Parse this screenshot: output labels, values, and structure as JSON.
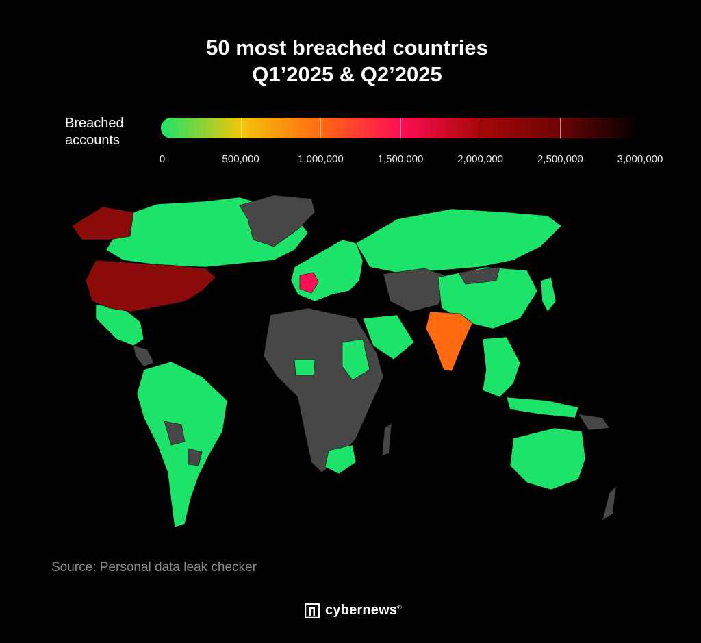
{
  "title": {
    "line1": "50 most breached countries",
    "line2": "Q1’2025 & Q2’2025"
  },
  "legend": {
    "label_line1": "Breached",
    "label_line2": "accounts",
    "ticks": [
      "0",
      "500,000",
      "1,000,000",
      "1,500,000",
      "2,000,000",
      "2,500,000",
      "3,000,000"
    ],
    "tick_values": [
      0,
      500000,
      1000000,
      1500000,
      2000000,
      2500000,
      3000000
    ],
    "scale_min": 0,
    "scale_max": 3000000,
    "color_stops": [
      "#1de36a",
      "#f2c40a",
      "#ff6a12",
      "#ff0e54",
      "#a60808",
      "#6b0404",
      "#000000"
    ]
  },
  "map": {
    "no_data_color": "#474747",
    "low_color": "#1de36a",
    "highlighted": [
      {
        "country": "United States",
        "color": "#8b0a0a"
      },
      {
        "country": "India",
        "color": "#ff6a12"
      },
      {
        "country": "France",
        "color": "#ff0e54"
      }
    ]
  },
  "source": "Source: Personal data leak checker",
  "brand": {
    "name": "cybernews",
    "mark": "®",
    "icon": "cybernews-logo-icon"
  }
}
